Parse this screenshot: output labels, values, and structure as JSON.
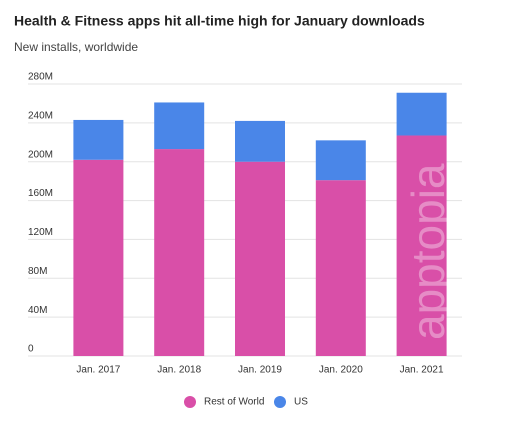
{
  "chart_data": {
    "type": "stacked-bar",
    "title": "Health & Fitness apps hit all-time high for January downloads",
    "subtitle": "New installs, worldwide",
    "watermark": "apptopia",
    "categories": [
      "Jan. 2017",
      "Jan. 2018",
      "Jan. 2019",
      "Jan. 2020",
      "Jan. 2021"
    ],
    "series": [
      {
        "name": "Rest of World",
        "color": "#d94fa8",
        "values": [
          202,
          213,
          200,
          181,
          227
        ]
      },
      {
        "name": "US",
        "color": "#4a86e8",
        "values": [
          41,
          48,
          42,
          41,
          44
        ]
      }
    ],
    "ylim": [
      0,
      280
    ],
    "yticks": [
      0,
      {
        "value": 40,
        "label": "40M"
      },
      {
        "value": 80,
        "label": "80M"
      },
      {
        "value": 120,
        "label": "120M"
      },
      {
        "value": 160,
        "label": "160M"
      },
      {
        "value": 200,
        "label": "200M"
      },
      {
        "value": 240,
        "label": "240M"
      },
      {
        "value": 280,
        "label": "280M"
      }
    ],
    "grid": true,
    "legend": "bottom"
  }
}
